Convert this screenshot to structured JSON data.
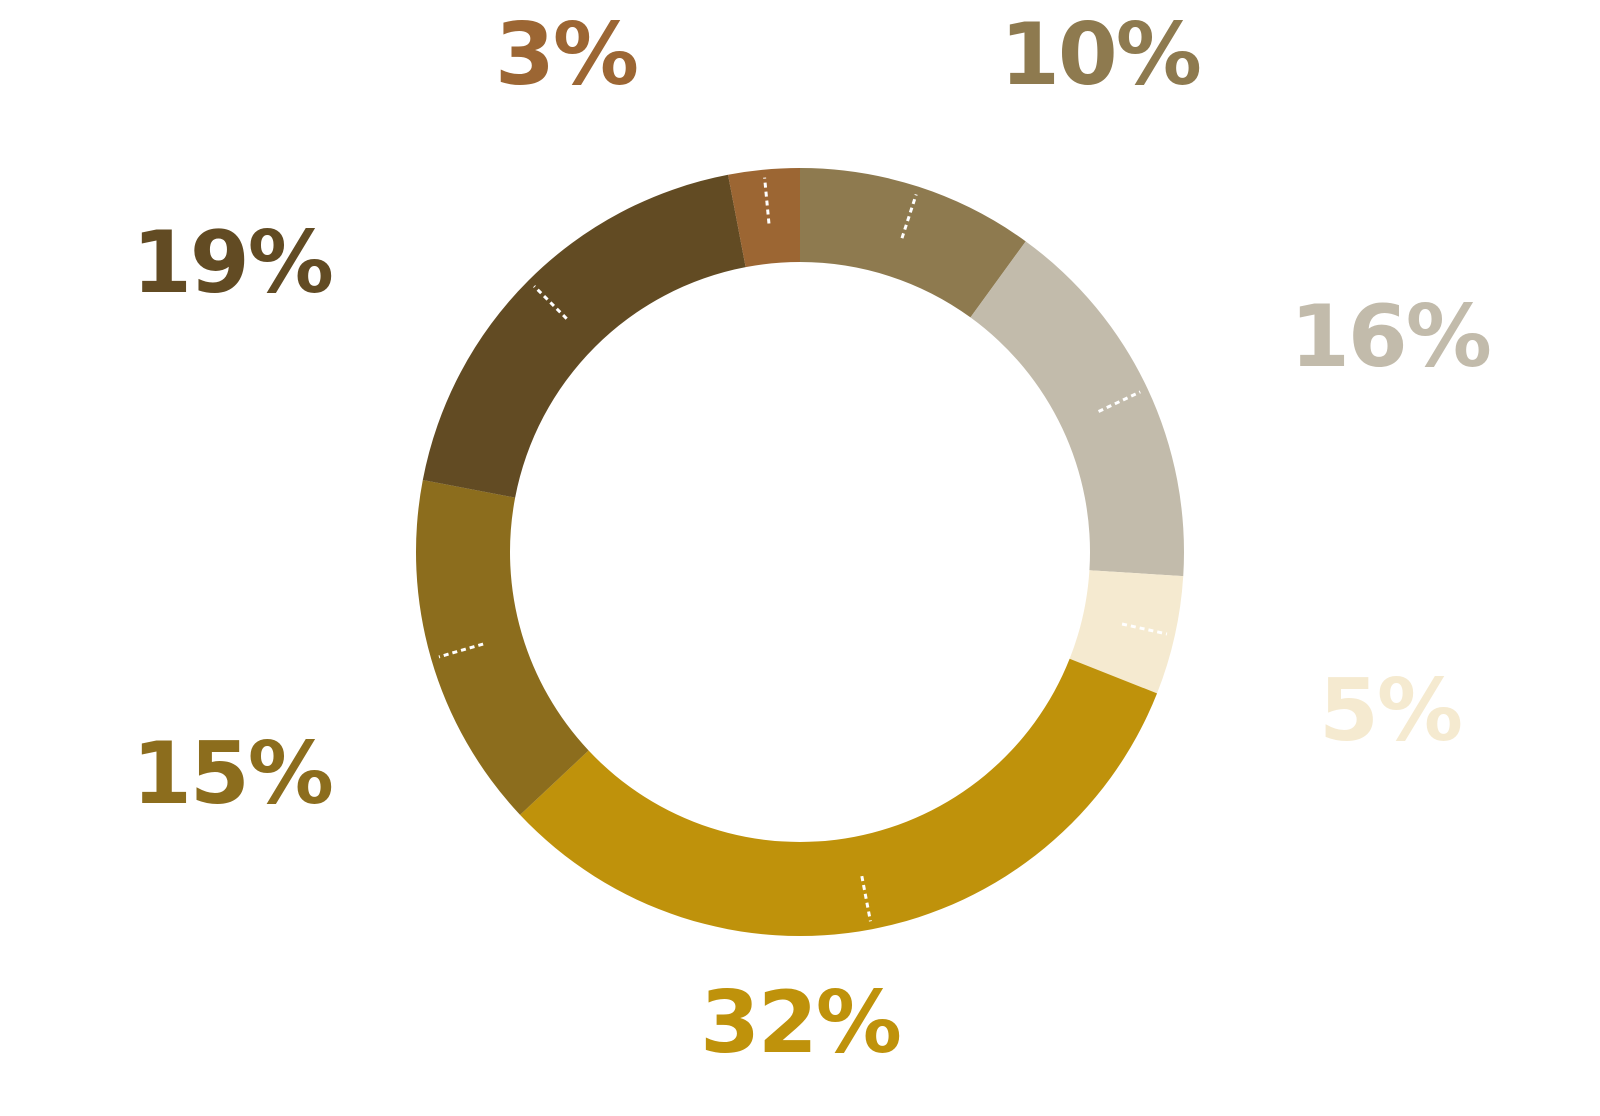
{
  "chart_data": {
    "type": "pie",
    "variant": "donut",
    "title": "",
    "slices": [
      {
        "value": 10,
        "label": "10%",
        "color": "#8e7a4f"
      },
      {
        "value": 16,
        "label": "16%",
        "color": "#c2bbab"
      },
      {
        "value": 5,
        "label": "5%",
        "color": "#f5ead0"
      },
      {
        "value": 32,
        "label": "32%",
        "color": "#bf920b"
      },
      {
        "value": 15,
        "label": "15%",
        "color": "#8c6d1d"
      },
      {
        "value": 19,
        "label": "19%",
        "color": "#624b23"
      },
      {
        "value": 3,
        "label": "3%",
        "color": "#9c6633"
      }
    ],
    "start_angle": "top",
    "direction": "clockwise",
    "legend": "none",
    "leader_lines": "white dashed"
  }
}
